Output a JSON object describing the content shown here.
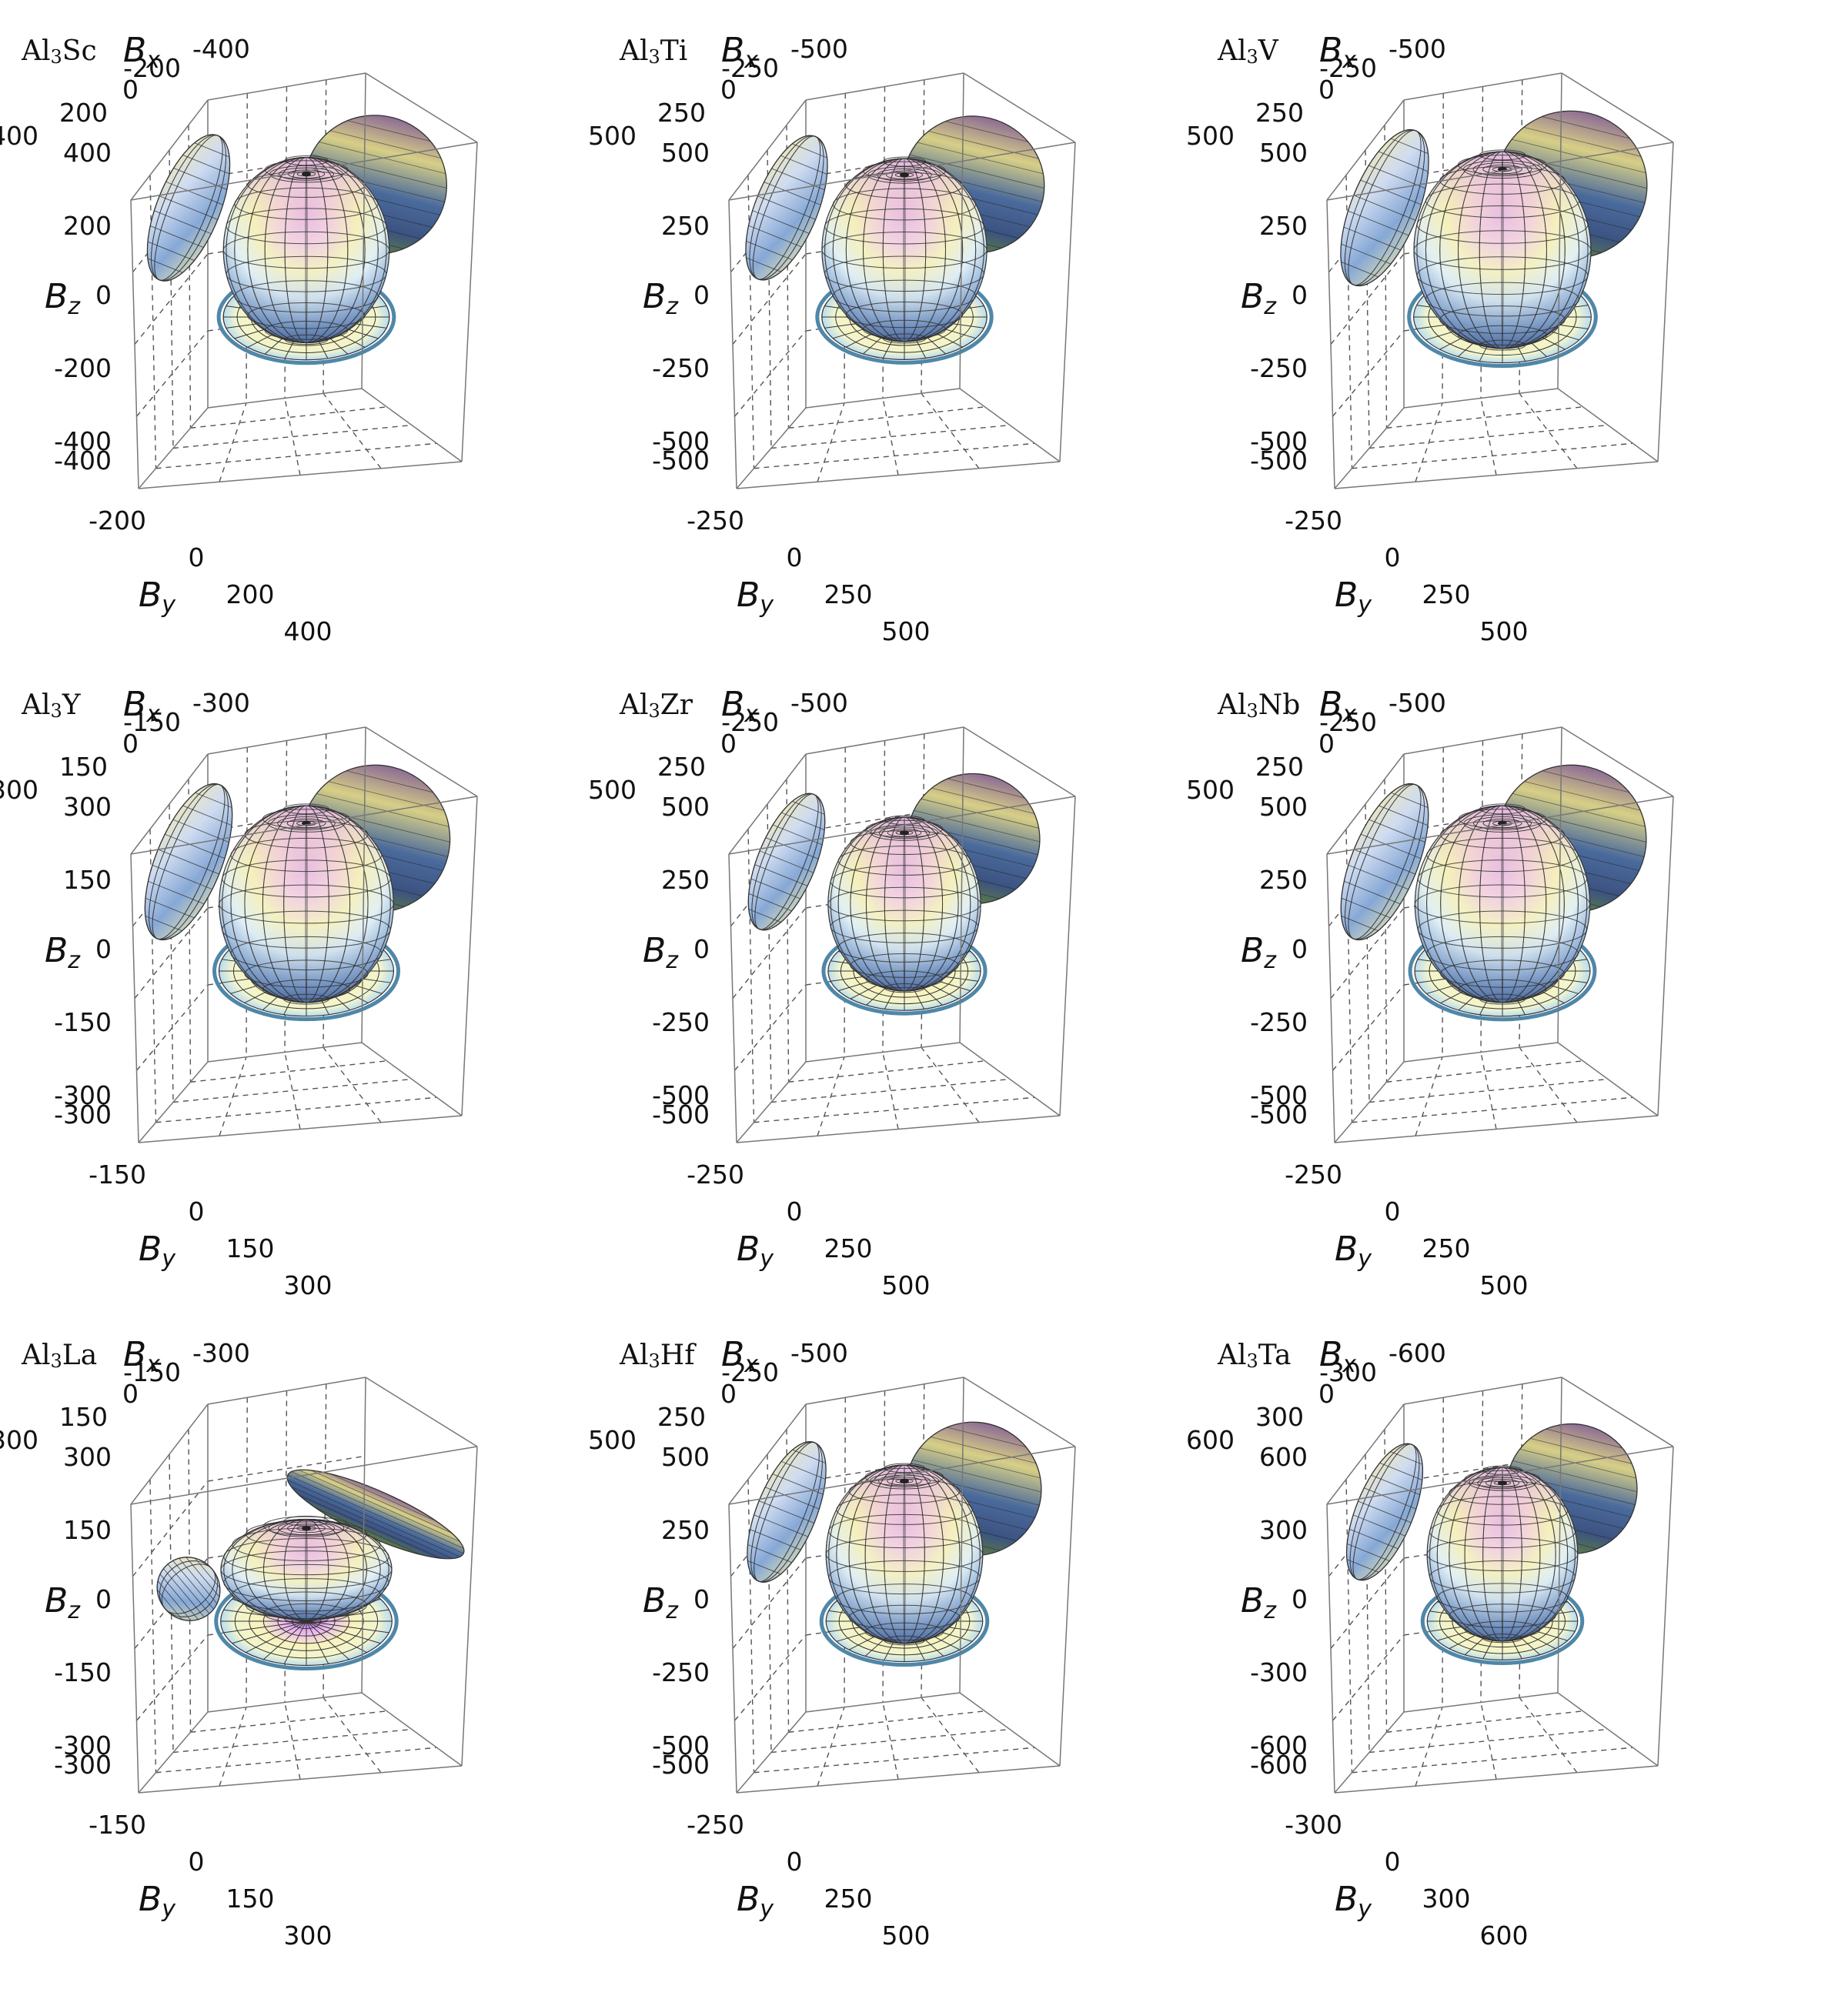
{
  "chart_data": [
    {
      "type": "3d-surface",
      "title_main": "Al",
      "title_sub": "3",
      "title_tail": "Sc",
      "xlabel": "B",
      "xsub": "x",
      "ylabel": "B",
      "ysub": "y",
      "zlabel": "B",
      "zsub": "z",
      "ticks_x": [
        "-400",
        "-200",
        "0",
        "200",
        "400"
      ],
      "ticks_y": [
        "-400",
        "-200",
        "0",
        "200",
        "400"
      ],
      "ticks_z": [
        "400",
        "200",
        "0",
        "-200",
        "-400"
      ],
      "lim": [
        -400,
        400
      ],
      "radius_xy": 290,
      "radius_z": 300,
      "tilt": "normal"
    },
    {
      "type": "3d-surface",
      "title_main": "Al",
      "title_sub": "3",
      "title_tail": "Ti",
      "xlabel": "B",
      "xsub": "x",
      "ylabel": "B",
      "ysub": "y",
      "zlabel": "B",
      "zsub": "z",
      "ticks_x": [
        "-500",
        "-250",
        "0",
        "250",
        "500"
      ],
      "ticks_y": [
        "-500",
        "-250",
        "0",
        "250",
        "500"
      ],
      "ticks_z": [
        "500",
        "250",
        "0",
        "-250",
        "-500"
      ],
      "lim": [
        -500,
        500
      ],
      "radius_xy": 360,
      "radius_z": 370,
      "tilt": "normal"
    },
    {
      "type": "3d-surface",
      "title_main": "Al",
      "title_sub": "3",
      "title_tail": "V",
      "xlabel": "B",
      "xsub": "x",
      "ylabel": "B",
      "ysub": "y",
      "zlabel": "B",
      "zsub": "z",
      "ticks_x": [
        "-500",
        "-250",
        "0",
        "250",
        "500"
      ],
      "ticks_y": [
        "-500",
        "-250",
        "0",
        "250",
        "500"
      ],
      "ticks_z": [
        "500",
        "250",
        "0",
        "-250",
        "-500"
      ],
      "lim": [
        -500,
        500
      ],
      "radius_xy": 390,
      "radius_z": 400,
      "tilt": "normal"
    },
    {
      "type": "3d-surface",
      "title_main": "Al",
      "title_sub": "3",
      "title_tail": "Y",
      "xlabel": "B",
      "xsub": "x",
      "ylabel": "B",
      "ysub": "y",
      "zlabel": "B",
      "zsub": "z",
      "ticks_x": [
        "-300",
        "-150",
        "0",
        "150",
        "300"
      ],
      "ticks_y": [
        "-300",
        "-150",
        "0",
        "150",
        "300"
      ],
      "ticks_z": [
        "300",
        "150",
        "0",
        "-150",
        "-300"
      ],
      "lim": [
        -300,
        300
      ],
      "radius_xy": 230,
      "radius_z": 240,
      "tilt": "normal"
    },
    {
      "type": "3d-surface",
      "title_main": "Al",
      "title_sub": "3",
      "title_tail": "Zr",
      "xlabel": "B",
      "xsub": "x",
      "ylabel": "B",
      "ysub": "y",
      "zlabel": "B",
      "zsub": "z",
      "ticks_x": [
        "-500",
        "-250",
        "0",
        "250",
        "500"
      ],
      "ticks_y": [
        "-500",
        "-250",
        "0",
        "250",
        "500"
      ],
      "ticks_z": [
        "500",
        "250",
        "0",
        "-250",
        "-500"
      ],
      "lim": [
        -500,
        500
      ],
      "radius_xy": 330,
      "radius_z": 350,
      "tilt": "normal"
    },
    {
      "type": "3d-surface",
      "title_main": "Al",
      "title_sub": "3",
      "title_tail": "Nb",
      "xlabel": "B",
      "xsub": "x",
      "ylabel": "B",
      "ysub": "y",
      "zlabel": "B",
      "zsub": "z",
      "ticks_x": [
        "-500",
        "-250",
        "0",
        "250",
        "500"
      ],
      "ticks_y": [
        "-500",
        "-250",
        "0",
        "250",
        "500"
      ],
      "ticks_z": [
        "500",
        "250",
        "0",
        "-250",
        "-500"
      ],
      "lim": [
        -500,
        500
      ],
      "radius_xy": 385,
      "radius_z": 400,
      "tilt": "normal"
    },
    {
      "type": "3d-surface",
      "title_main": "Al",
      "title_sub": "3",
      "title_tail": "La",
      "xlabel": "B",
      "xsub": "x",
      "ylabel": "B",
      "ysub": "y",
      "zlabel": "B",
      "zsub": "z",
      "ticks_x": [
        "-300",
        "-150",
        "0",
        "150",
        "300"
      ],
      "ticks_y": [
        "-300",
        "-150",
        "0",
        "150",
        "300"
      ],
      "ticks_z": [
        "300",
        "150",
        "0",
        "-150",
        "-300"
      ],
      "lim": [
        -300,
        300
      ],
      "radius_xy": 225,
      "radius_z": 150,
      "tilt": "flat"
    },
    {
      "type": "3d-surface",
      "title_main": "Al",
      "title_sub": "3",
      "title_tail": "Hf",
      "xlabel": "B",
      "xsub": "x",
      "ylabel": "B",
      "ysub": "y",
      "zlabel": "B",
      "zsub": "z",
      "ticks_x": [
        "-500",
        "-250",
        "0",
        "250",
        "500"
      ],
      "ticks_y": [
        "-500",
        "-250",
        "0",
        "250",
        "500"
      ],
      "ticks_z": [
        "500",
        "250",
        "0",
        "-250",
        "-500"
      ],
      "lim": [
        -500,
        500
      ],
      "radius_xy": 340,
      "radius_z": 360,
      "tilt": "normal"
    },
    {
      "type": "3d-surface",
      "title_main": "Al",
      "title_sub": "3",
      "title_tail": "Ta",
      "xlabel": "B",
      "xsub": "x",
      "ylabel": "B",
      "ysub": "y",
      "zlabel": "B",
      "zsub": "z",
      "ticks_x": [
        "-600",
        "-300",
        "0",
        "300",
        "600"
      ],
      "ticks_y": [
        "-600",
        "-300",
        "0",
        "300",
        "600"
      ],
      "ticks_z": [
        "600",
        "300",
        "0",
        "-300",
        "-600"
      ],
      "lim": [
        -600,
        600
      ],
      "radius_xy": 390,
      "radius_z": 420,
      "tilt": "normal"
    }
  ]
}
